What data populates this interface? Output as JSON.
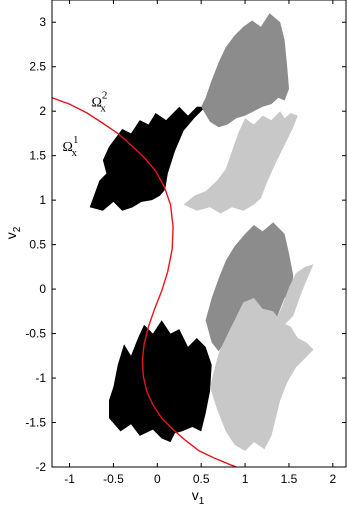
{
  "chart_data": {
    "type": "area",
    "title": "",
    "xlabel": "v",
    "xlabel_sub": "1",
    "ylabel": "v",
    "ylabel_sub": "2",
    "xlim": [
      -1.2,
      2.15
    ],
    "ylim": [
      -2,
      3.25
    ],
    "xticks": [
      -1,
      -0.5,
      0,
      0.5,
      1,
      1.5,
      2
    ],
    "yticks": [
      -2,
      -1.5,
      -1,
      -0.5,
      0,
      0.5,
      1,
      1.5,
      2,
      2.5,
      3
    ],
    "grid": false,
    "annotations": [
      {
        "text": "Ω",
        "sup": "2",
        "sub": "x",
        "x": -0.75,
        "y": 2.05
      },
      {
        "text": "Ω",
        "sup": "1",
        "sub": "x",
        "x": -1.08,
        "y": 1.55
      }
    ],
    "regions": [
      {
        "color": "#000000",
        "points": [
          [
            -0.77,
            0.92
          ],
          [
            -0.62,
            0.88
          ],
          [
            -0.5,
            0.98
          ],
          [
            -0.4,
            0.88
          ],
          [
            -0.28,
            0.92
          ],
          [
            -0.18,
            0.98
          ],
          [
            -0.06,
            1.0
          ],
          [
            0.03,
            1.05
          ],
          [
            0.09,
            1.12
          ],
          [
            0.12,
            1.3
          ],
          [
            0.2,
            1.55
          ],
          [
            0.3,
            1.78
          ],
          [
            0.42,
            1.92
          ],
          [
            0.5,
            2.0
          ],
          [
            0.55,
            2.05
          ],
          [
            0.45,
            2.05
          ],
          [
            0.35,
            1.95
          ],
          [
            0.25,
            2.05
          ],
          [
            0.1,
            1.9
          ],
          [
            -0.02,
            1.98
          ],
          [
            -0.1,
            1.85
          ],
          [
            -0.2,
            1.9
          ],
          [
            -0.3,
            1.75
          ],
          [
            -0.4,
            1.8
          ],
          [
            -0.55,
            1.6
          ],
          [
            -0.62,
            1.45
          ],
          [
            -0.58,
            1.3
          ],
          [
            -0.66,
            1.22
          ]
        ]
      },
      {
        "color": "#000000",
        "points": [
          [
            -0.55,
            -1.45
          ],
          [
            -0.42,
            -1.6
          ],
          [
            -0.3,
            -1.52
          ],
          [
            -0.2,
            -1.65
          ],
          [
            -0.05,
            -1.58
          ],
          [
            0.05,
            -1.68
          ],
          [
            0.15,
            -1.72
          ],
          [
            0.2,
            -1.62
          ],
          [
            0.28,
            -1.6
          ],
          [
            0.4,
            -1.55
          ],
          [
            0.5,
            -1.6
          ],
          [
            0.55,
            -1.4
          ],
          [
            0.6,
            -1.15
          ],
          [
            0.62,
            -0.85
          ],
          [
            0.55,
            -0.65
          ],
          [
            0.45,
            -0.55
          ],
          [
            0.35,
            -0.65
          ],
          [
            0.25,
            -0.45
          ],
          [
            0.15,
            -0.5
          ],
          [
            0.05,
            -0.35
          ],
          [
            -0.05,
            -0.5
          ],
          [
            -0.15,
            -0.4
          ],
          [
            -0.22,
            -0.55
          ],
          [
            -0.3,
            -0.75
          ],
          [
            -0.38,
            -0.62
          ],
          [
            -0.45,
            -0.85
          ],
          [
            -0.5,
            -1.1
          ],
          [
            -0.55,
            -1.25
          ]
        ]
      },
      {
        "color": "#8c8c8c",
        "points": [
          [
            0.5,
            2.05
          ],
          [
            0.55,
            2.15
          ],
          [
            0.62,
            2.35
          ],
          [
            0.7,
            2.55
          ],
          [
            0.78,
            2.72
          ],
          [
            0.88,
            2.85
          ],
          [
            0.98,
            2.95
          ],
          [
            1.08,
            3.02
          ],
          [
            1.18,
            2.95
          ],
          [
            1.28,
            3.1
          ],
          [
            1.4,
            3.0
          ],
          [
            1.45,
            2.8
          ],
          [
            1.48,
            2.5
          ],
          [
            1.5,
            2.25
          ],
          [
            1.45,
            2.12
          ],
          [
            1.38,
            2.15
          ],
          [
            1.3,
            2.08
          ],
          [
            1.2,
            2.05
          ],
          [
            1.1,
            2.0
          ],
          [
            1.0,
            1.95
          ],
          [
            0.9,
            1.92
          ],
          [
            0.8,
            1.85
          ],
          [
            0.7,
            1.82
          ],
          [
            0.6,
            1.88
          ]
        ]
      },
      {
        "color": "#8c8c8c",
        "points": [
          [
            0.55,
            -0.35
          ],
          [
            0.62,
            -0.1
          ],
          [
            0.7,
            0.12
          ],
          [
            0.78,
            0.32
          ],
          [
            0.88,
            0.48
          ],
          [
            1.0,
            0.62
          ],
          [
            1.1,
            0.72
          ],
          [
            1.2,
            0.65
          ],
          [
            1.32,
            0.75
          ],
          [
            1.45,
            0.62
          ],
          [
            1.5,
            0.4
          ],
          [
            1.55,
            0.15
          ],
          [
            1.52,
            -0.05
          ],
          [
            1.45,
            -0.1
          ],
          [
            1.35,
            -0.35
          ],
          [
            1.22,
            -0.3
          ],
          [
            1.12,
            -0.5
          ],
          [
            1.0,
            -0.45
          ],
          [
            0.9,
            -0.6
          ],
          [
            0.8,
            -0.55
          ],
          [
            0.7,
            -0.7
          ],
          [
            0.62,
            -0.6
          ]
        ]
      },
      {
        "color": "#c8c8c8",
        "points": [
          [
            0.3,
            0.95
          ],
          [
            0.45,
            0.88
          ],
          [
            0.6,
            0.92
          ],
          [
            0.72,
            0.85
          ],
          [
            0.85,
            0.92
          ],
          [
            0.98,
            0.88
          ],
          [
            1.1,
            0.95
          ],
          [
            1.18,
            1.02
          ],
          [
            1.25,
            1.2
          ],
          [
            1.35,
            1.42
          ],
          [
            1.45,
            1.62
          ],
          [
            1.55,
            1.82
          ],
          [
            1.6,
            1.95
          ],
          [
            1.52,
            1.98
          ],
          [
            1.45,
            1.92
          ],
          [
            1.4,
            2.0
          ],
          [
            1.3,
            1.9
          ],
          [
            1.2,
            1.95
          ],
          [
            1.1,
            1.85
          ],
          [
            1.0,
            1.92
          ],
          [
            0.92,
            1.75
          ],
          [
            0.85,
            1.55
          ],
          [
            0.78,
            1.35
          ],
          [
            0.68,
            1.22
          ],
          [
            0.55,
            1.1
          ],
          [
            0.42,
            1.05
          ]
        ]
      },
      {
        "color": "#c8c8c8",
        "points": [
          [
            0.6,
            -1.1
          ],
          [
            0.68,
            -1.35
          ],
          [
            0.78,
            -1.6
          ],
          [
            0.88,
            -1.75
          ],
          [
            1.0,
            -1.82
          ],
          [
            1.1,
            -1.72
          ],
          [
            1.22,
            -1.8
          ],
          [
            1.3,
            -1.65
          ],
          [
            1.35,
            -1.45
          ],
          [
            1.4,
            -1.25
          ],
          [
            1.48,
            -1.05
          ],
          [
            1.58,
            -0.88
          ],
          [
            1.68,
            -0.78
          ],
          [
            1.78,
            -0.68
          ],
          [
            1.7,
            -0.6
          ],
          [
            1.6,
            -0.55
          ],
          [
            1.52,
            -0.42
          ],
          [
            1.42,
            -0.38
          ],
          [
            1.32,
            -0.25
          ],
          [
            1.2,
            -0.22
          ],
          [
            1.1,
            -0.1
          ],
          [
            0.98,
            -0.15
          ],
          [
            0.88,
            -0.35
          ],
          [
            0.78,
            -0.55
          ],
          [
            0.7,
            -0.72
          ],
          [
            0.65,
            -0.9
          ]
        ]
      },
      {
        "color": "#c8c8c8",
        "points": [
          [
            1.35,
            -0.35
          ],
          [
            1.42,
            -0.2
          ],
          [
            1.5,
            0.02
          ],
          [
            1.58,
            0.18
          ],
          [
            1.68,
            0.25
          ],
          [
            1.78,
            0.28
          ],
          [
            1.7,
            0.1
          ],
          [
            1.62,
            -0.1
          ],
          [
            1.55,
            -0.3
          ],
          [
            1.45,
            -0.4
          ]
        ]
      }
    ],
    "series": [
      {
        "color": "#e8141c",
        "x": [
          -1.2,
          -1.0,
          -0.8,
          -0.6,
          -0.45,
          -0.3,
          -0.15,
          -0.02,
          0.08,
          0.15,
          0.18,
          0.17,
          0.12,
          0.05,
          -0.03,
          -0.1,
          -0.15,
          -0.17,
          -0.16,
          -0.12,
          -0.05,
          0.05,
          0.18,
          0.32,
          0.48,
          0.65,
          0.82,
          0.9
        ],
        "y": [
          2.15,
          2.08,
          1.98,
          1.85,
          1.75,
          1.62,
          1.48,
          1.33,
          1.15,
          0.95,
          0.7,
          0.45,
          0.2,
          -0.02,
          -0.22,
          -0.42,
          -0.62,
          -0.8,
          -0.98,
          -1.15,
          -1.3,
          -1.45,
          -1.58,
          -1.7,
          -1.82,
          -1.9,
          -1.97,
          -2.0
        ]
      }
    ]
  }
}
